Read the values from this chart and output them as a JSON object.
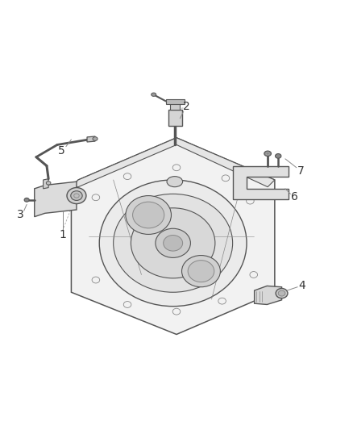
{
  "background_color": "#ffffff",
  "line_color": "#555555",
  "line_color2": "#888888",
  "label_color": "#333333",
  "figsize": [
    4.38,
    5.33
  ],
  "dpi": 100,
  "label_fontsize": 10,
  "housing_face_color": "#f0f0f0",
  "housing_inner_color": "#e0e0e0",
  "part_color": "#e0e0e0"
}
